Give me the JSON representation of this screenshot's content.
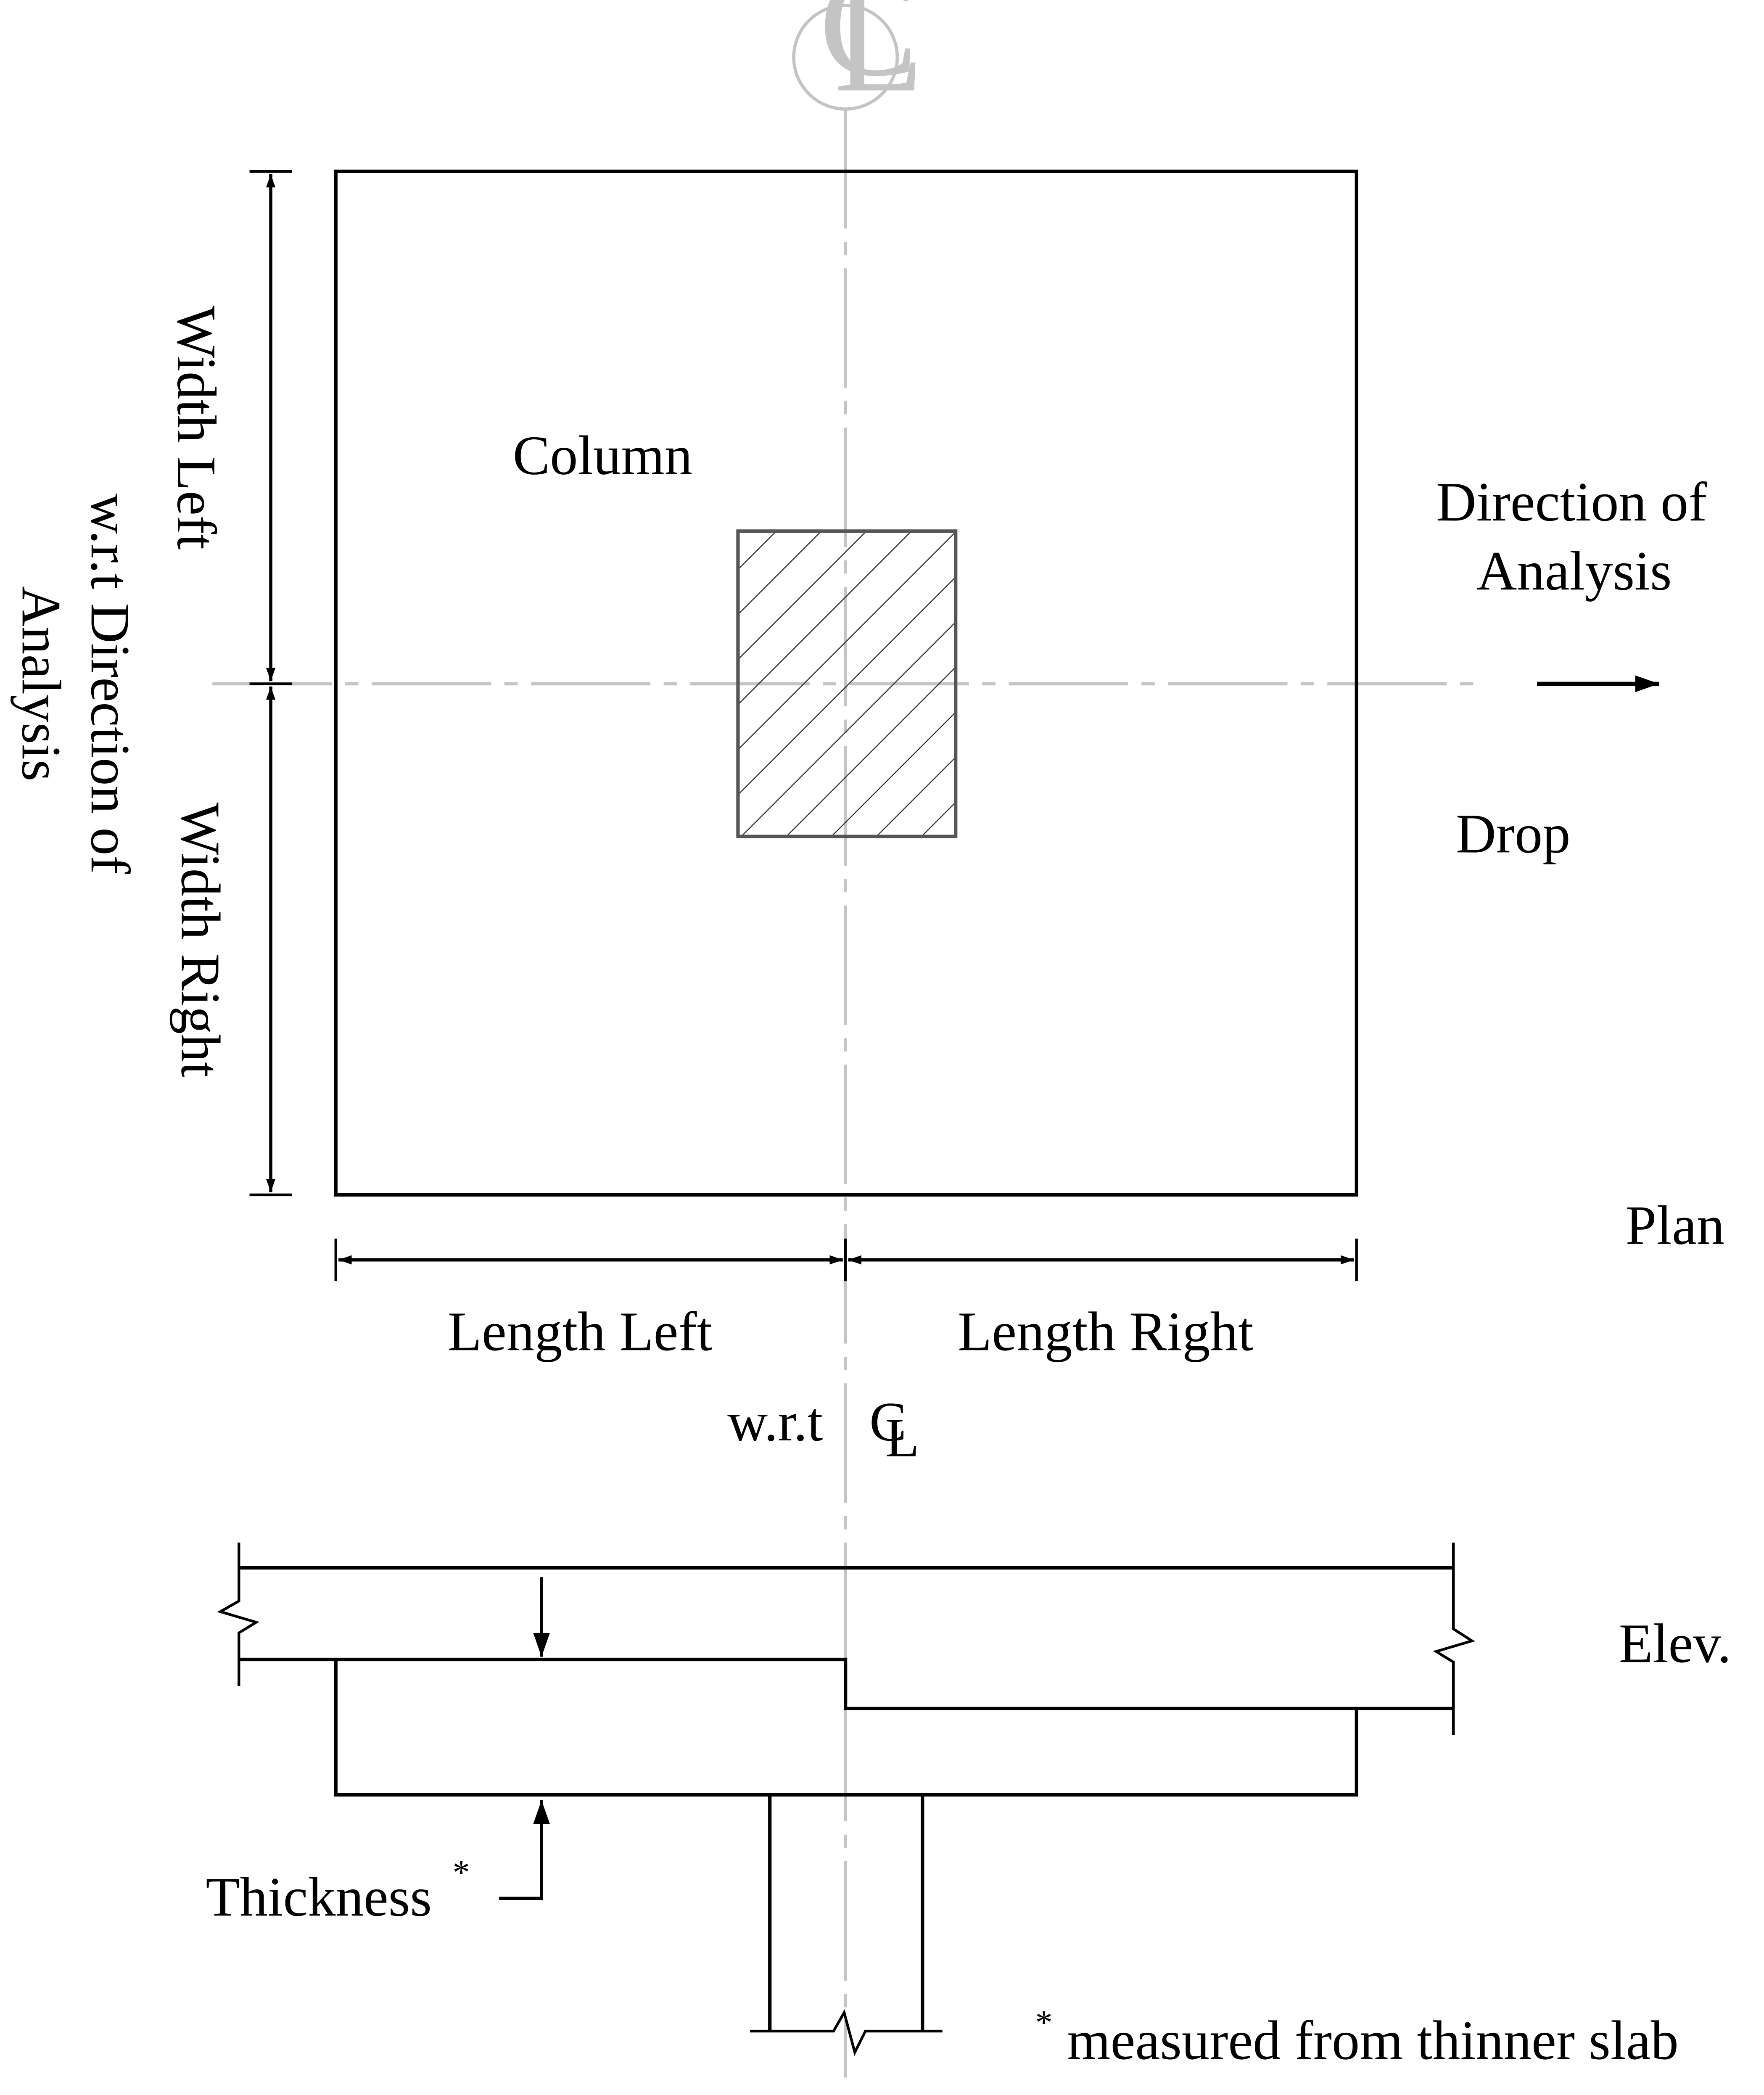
{
  "labels": {
    "column": "Column",
    "direction_line1": "Direction of",
    "direction_line2": "Analysis",
    "drop": "Drop",
    "plan": "Plan",
    "elev": "Elev.",
    "width_left": "Width Left",
    "width_right": "Width Right",
    "wrt_line1": "w.r.t Direction of",
    "wrt_line2": "Analysis",
    "length_left": "Length Left",
    "length_right": "Length Right",
    "wrt_cl": "w.r.t",
    "thickness": "Thickness",
    "asterisk": "*",
    "footnote": "measured from thinner slab",
    "centerline_symbol_c": "C",
    "centerline_symbol_l": "L"
  },
  "colors": {
    "ink": "#000000",
    "centerline": "#c4c4c4",
    "column_border": "#555555"
  }
}
